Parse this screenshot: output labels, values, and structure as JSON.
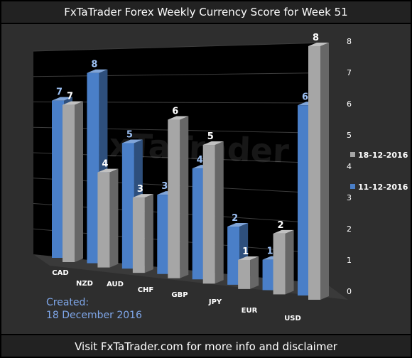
{
  "title": "FxTaTrader Forex Weekly Currency Score for Week 51",
  "footer": "Visit FxTaTrader.com for more info and disclaimer",
  "watermark": "FxTaTrader",
  "created_label": "Created:",
  "created_date": "18 December 2016",
  "colors": {
    "front": "#a6a6a6",
    "back": "#4a7fc8",
    "background": "#2e2e2e",
    "wall": "#000000"
  },
  "chart_data": {
    "type": "bar",
    "categories": [
      "CAD",
      "NZD",
      "AUD",
      "CHF",
      "GBP",
      "JPY",
      "EUR",
      "USD"
    ],
    "series": [
      {
        "name": "18-12-2016",
        "values": [
          7,
          4,
          3,
          6,
          5,
          1,
          2,
          8
        ]
      },
      {
        "name": "11-12-2016",
        "values": [
          7,
          8,
          5,
          3,
          4,
          2,
          1,
          6
        ]
      }
    ],
    "yticks": [
      "0",
      "1",
      "2",
      "3",
      "4",
      "5",
      "6",
      "7",
      "8"
    ],
    "ylim": [
      0,
      8
    ],
    "legend": "right",
    "grid": true
  }
}
